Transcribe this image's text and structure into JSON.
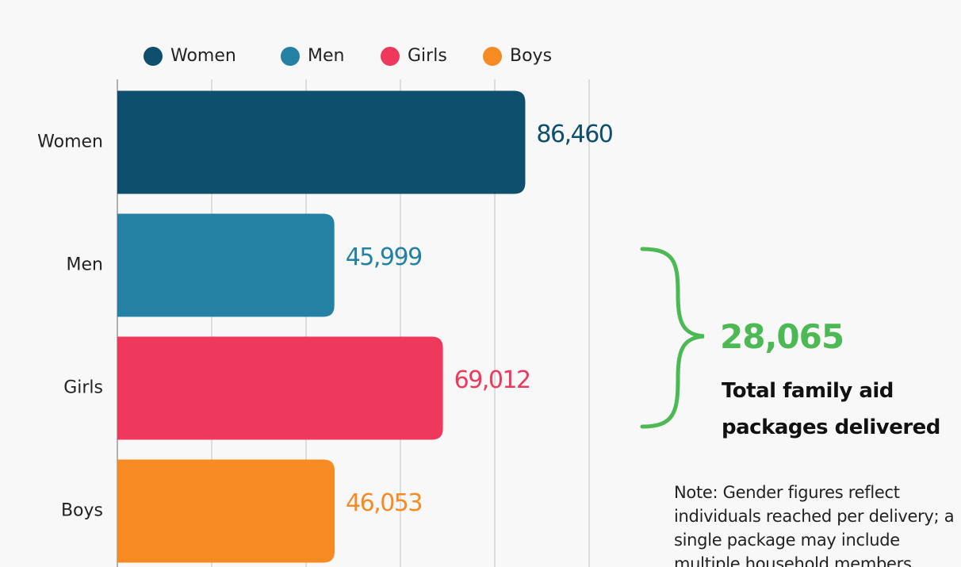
{
  "chart_data": {
    "type": "bar",
    "orientation": "horizontal",
    "categories": [
      "Women",
      "Men",
      "Girls",
      "Boys"
    ],
    "values": [
      86460,
      45999,
      69012,
      46053
    ],
    "value_labels": [
      "86,460",
      "45,999",
      "69,012",
      "46,053"
    ],
    "colors": [
      "#0d4f6c",
      "#2481a4",
      "#ee395d",
      "#f68b23"
    ],
    "xlim": [
      0,
      100000
    ],
    "xticks": [
      0,
      20000,
      40000,
      60000,
      80000,
      100000
    ],
    "grid": true,
    "legend": "top",
    "annotation": {
      "value": "28,065",
      "text": "Total family aid packages delivered",
      "color": "#4cb954"
    },
    "note": "Note: Gender figures reflect individuals reached per delivery; a single package may include multiple household members."
  }
}
